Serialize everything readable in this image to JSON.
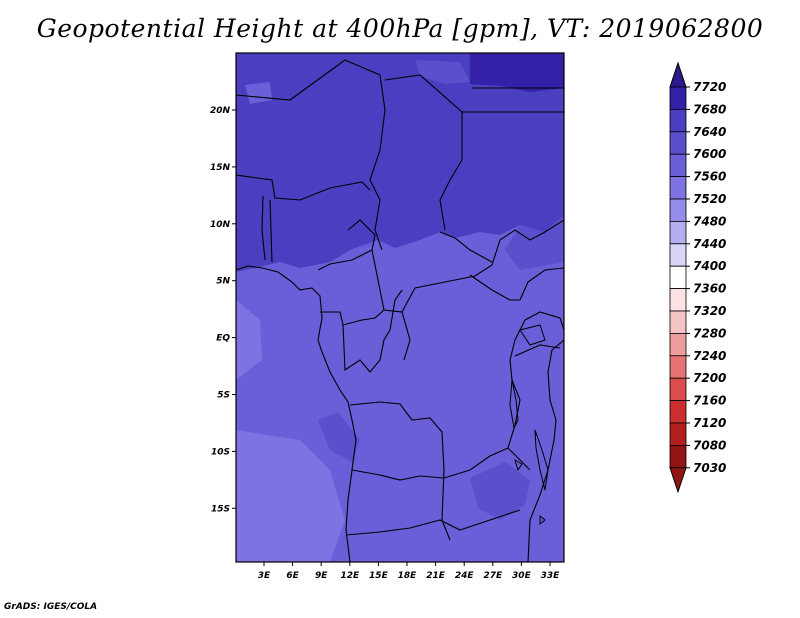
{
  "title": "Geopotential Height at 400hPa [gpm], VT: 2019062800",
  "credit": "GrADS: IGES/COLA",
  "map": {
    "lat_labels": [
      "20N",
      "15N",
      "10N",
      "5N",
      "EQ",
      "5S",
      "10S",
      "15S"
    ],
    "lon_labels": [
      "3E",
      "6E",
      "9E",
      "12E",
      "15E",
      "18E",
      "21E",
      "24E",
      "27E",
      "30E",
      "33E"
    ]
  },
  "colorbar": {
    "levels": [
      "7720",
      "7680",
      "7640",
      "7600",
      "7560",
      "7520",
      "7480",
      "7440",
      "7400",
      "7360",
      "7320",
      "7280",
      "7240",
      "7200",
      "7160",
      "7120",
      "7080",
      "7030"
    ],
    "colors": [
      "#2a1a8c",
      "#3322a8",
      "#4a3fc0",
      "#5a50cc",
      "#6a5fd8",
      "#7d73e2",
      "#958deb",
      "#b4aef2",
      "#d8d5f8",
      "#ffffff",
      "#fbe3e3",
      "#f6c4c4",
      "#ef9c9c",
      "#e67474",
      "#dc4c4c",
      "#cc2e2e",
      "#b21f1f",
      "#921414"
    ]
  }
}
